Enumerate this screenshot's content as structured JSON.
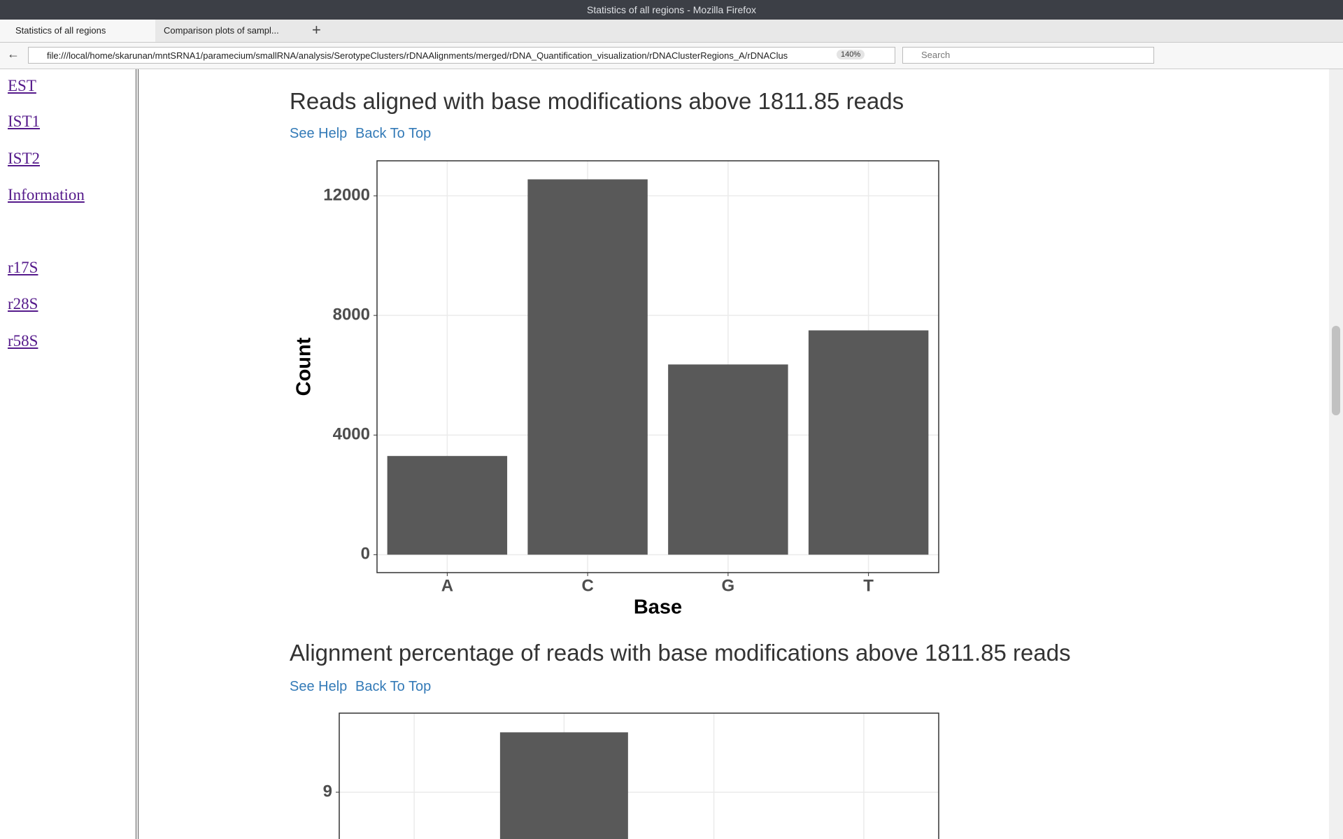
{
  "window": {
    "title": "Statistics of all regions - Mozilla Firefox"
  },
  "tabs": [
    "Statistics of all regions",
    "Comparison plots of sampl..."
  ],
  "url": "file:///local/home/skarunan/mntSRNA1/paramecium/smallRNA/analysis/SerotypeClusters/rDNAAlignments/merged/rDNA_Quantification_visualization/rDNAClusterRegions_A/rDNAClus",
  "zoom": "140%",
  "search_placeholder": "Search",
  "sidebar": {
    "links": [
      "EST",
      "IST1",
      "IST2",
      "Information",
      "r17S",
      "r28S",
      "r58S"
    ]
  },
  "sections": [
    {
      "links": [
        "See Help",
        "Back To Top"
      ]
    },
    {
      "links": [
        "See Help",
        "Back To Top"
      ]
    }
  ],
  "chart_data": [
    {
      "type": "bar",
      "title": "Reads aligned with base modifications above 1811.85 reads",
      "x_label": "Base",
      "y_label": "Count",
      "categories": [
        "A",
        "C",
        "G",
        "T"
      ],
      "values": [
        3300,
        12550,
        6360,
        7500
      ],
      "color": "#595959",
      "ylim": [
        -600,
        13170
      ],
      "yticks": [
        0,
        4000,
        8000,
        12000
      ],
      "grid": true
    },
    {
      "type": "bar",
      "title": "Alignment percentage of reads with base modifications above 1811.85 reads",
      "categories": [
        null,
        null,
        null,
        null
      ],
      "values": [
        null,
        9.5,
        null,
        null
      ],
      "color": "#595959",
      "ylim": [
        8.3,
        9.66
      ],
      "yticks": [
        9
      ],
      "grid": true
    }
  ]
}
